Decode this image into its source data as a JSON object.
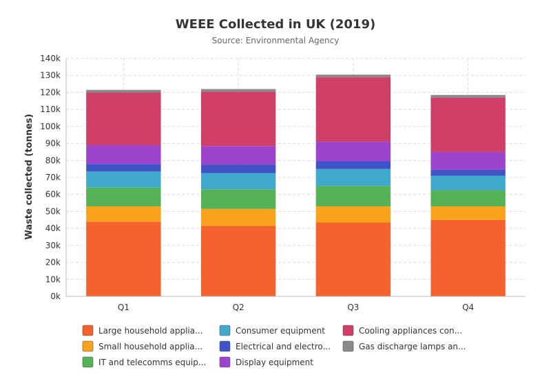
{
  "chart_data": {
    "type": "bar",
    "stacked": true,
    "title": "WEEE Collected in UK (2019)",
    "subtitle": "Source: Environmental Agency",
    "xlabel": "",
    "ylabel": "Waste collected (tonnes)",
    "ylim": [
      0,
      140000
    ],
    "yticks": [
      "0k",
      "10k",
      "20k",
      "30k",
      "40k",
      "50k",
      "60k",
      "70k",
      "80k",
      "90k",
      "100k",
      "110k",
      "120k",
      "130k",
      "140k"
    ],
    "grid": true,
    "legend_position": "bottom",
    "categories": [
      "Q1",
      "Q2",
      "Q3",
      "Q4"
    ],
    "series": [
      {
        "name": "Large household applia...",
        "color": "#f4622d",
        "values": [
          44000,
          41500,
          43500,
          45000
        ]
      },
      {
        "name": "Small household applia...",
        "color": "#f9a21c",
        "values": [
          9000,
          10000,
          9500,
          8000
        ]
      },
      {
        "name": "IT and telecomms equip...",
        "color": "#55b356",
        "values": [
          11000,
          11500,
          12000,
          9500
        ]
      },
      {
        "name": "Consumer equipment",
        "color": "#41a9cb",
        "values": [
          9500,
          9500,
          10000,
          8500
        ]
      },
      {
        "name": "Electrical and electro...",
        "color": "#4154c7",
        "values": [
          4500,
          5000,
          4500,
          3500
        ]
      },
      {
        "name": "Display equipment",
        "color": "#9c44cc",
        "values": [
          11000,
          11000,
          11500,
          10500
        ]
      },
      {
        "name": "Cooling appliances con...",
        "color": "#cf3f67",
        "values": [
          31000,
          32000,
          38000,
          32000
        ]
      },
      {
        "name": "Gas discharge lamps an...",
        "color": "#8a8a8a",
        "values": [
          1500,
          1500,
          1500,
          1500
        ]
      }
    ]
  }
}
